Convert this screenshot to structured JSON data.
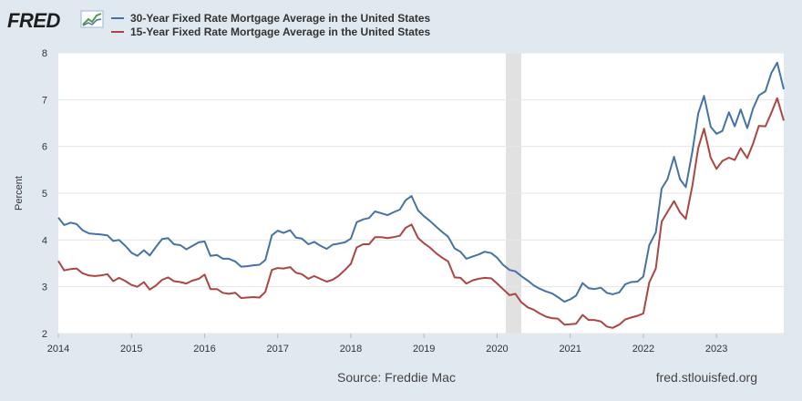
{
  "header": {
    "logo_text": "FRED",
    "logo_icon": "fred-chart-icon"
  },
  "footer": {
    "source": "Source: Freddie Mac",
    "site": "fred.stlouisfed.org"
  },
  "chart_data": {
    "type": "line",
    "title": "",
    "xlabel": "",
    "ylabel": "Percent",
    "ylim": [
      2,
      8
    ],
    "yticks": [
      2,
      3,
      4,
      5,
      6,
      7,
      8
    ],
    "xlim": [
      2014.0,
      2023.92
    ],
    "xticks": [
      "2014",
      "2015",
      "2016",
      "2017",
      "2018",
      "2019",
      "2020",
      "2021",
      "2022",
      "2023"
    ],
    "grid": "horizontal",
    "legend_position": "top-left",
    "recession": {
      "start": 2020.12,
      "end": 2020.33,
      "color": "#e1e1e1"
    },
    "series": [
      {
        "name": "30-Year Fixed Rate Mortgage Average in the United States",
        "color": "#4572a7",
        "x": [
          2014.0,
          2014.08,
          2014.17,
          2014.25,
          2014.33,
          2014.42,
          2014.5,
          2014.58,
          2014.67,
          2014.75,
          2014.83,
          2014.92,
          2015.0,
          2015.08,
          2015.17,
          2015.25,
          2015.33,
          2015.42,
          2015.5,
          2015.58,
          2015.67,
          2015.75,
          2015.83,
          2015.92,
          2016.0,
          2016.08,
          2016.17,
          2016.25,
          2016.33,
          2016.42,
          2016.5,
          2016.58,
          2016.67,
          2016.75,
          2016.83,
          2016.92,
          2017.0,
          2017.08,
          2017.17,
          2017.25,
          2017.33,
          2017.42,
          2017.5,
          2017.58,
          2017.67,
          2017.75,
          2017.83,
          2017.92,
          2018.0,
          2018.08,
          2018.17,
          2018.25,
          2018.33,
          2018.42,
          2018.5,
          2018.58,
          2018.67,
          2018.75,
          2018.83,
          2018.92,
          2019.0,
          2019.08,
          2019.17,
          2019.25,
          2019.33,
          2019.42,
          2019.5,
          2019.58,
          2019.67,
          2019.75,
          2019.83,
          2019.92,
          2020.0,
          2020.08,
          2020.17,
          2020.25,
          2020.33,
          2020.42,
          2020.5,
          2020.58,
          2020.67,
          2020.75,
          2020.83,
          2020.92,
          2021.0,
          2021.08,
          2021.17,
          2021.25,
          2021.33,
          2021.42,
          2021.5,
          2021.58,
          2021.67,
          2021.75,
          2021.83,
          2021.92,
          2022.0,
          2022.08,
          2022.17,
          2022.25,
          2022.33,
          2022.42,
          2022.5,
          2022.58,
          2022.67,
          2022.75,
          2022.83,
          2022.92,
          2023.0,
          2023.08,
          2023.17,
          2023.25,
          2023.33,
          2023.42,
          2023.5,
          2023.58,
          2023.67,
          2023.75,
          2023.83,
          2023.92
        ],
        "values": [
          4.48,
          4.32,
          4.37,
          4.34,
          4.21,
          4.14,
          4.13,
          4.12,
          4.1,
          3.98,
          4.0,
          3.87,
          3.73,
          3.66,
          3.78,
          3.67,
          3.84,
          4.02,
          4.04,
          3.91,
          3.89,
          3.8,
          3.87,
          3.95,
          3.97,
          3.66,
          3.68,
          3.6,
          3.6,
          3.54,
          3.43,
          3.44,
          3.46,
          3.47,
          3.57,
          4.1,
          4.2,
          4.15,
          4.21,
          4.05,
          4.03,
          3.91,
          3.96,
          3.88,
          3.81,
          3.9,
          3.92,
          3.95,
          4.03,
          4.38,
          4.44,
          4.47,
          4.61,
          4.57,
          4.53,
          4.59,
          4.65,
          4.85,
          4.94,
          4.63,
          4.51,
          4.41,
          4.28,
          4.17,
          4.07,
          3.82,
          3.75,
          3.6,
          3.65,
          3.69,
          3.75,
          3.72,
          3.62,
          3.47,
          3.36,
          3.33,
          3.23,
          3.13,
          3.03,
          2.96,
          2.9,
          2.86,
          2.78,
          2.68,
          2.73,
          2.81,
          3.08,
          2.97,
          2.95,
          2.98,
          2.87,
          2.84,
          2.88,
          3.05,
          3.1,
          3.11,
          3.22,
          3.89,
          4.16,
          5.1,
          5.3,
          5.78,
          5.3,
          5.13,
          5.89,
          6.7,
          7.08,
          6.42,
          6.27,
          6.33,
          6.73,
          6.43,
          6.79,
          6.39,
          6.81,
          7.09,
          7.18,
          7.57,
          7.79,
          7.22
        ]
      },
      {
        "name": "15-Year Fixed Rate Mortgage Average in the United States",
        "color": "#aa4643",
        "x": [
          2014.0,
          2014.08,
          2014.17,
          2014.25,
          2014.33,
          2014.42,
          2014.5,
          2014.58,
          2014.67,
          2014.75,
          2014.83,
          2014.92,
          2015.0,
          2015.08,
          2015.17,
          2015.25,
          2015.33,
          2015.42,
          2015.5,
          2015.58,
          2015.67,
          2015.75,
          2015.83,
          2015.92,
          2016.0,
          2016.08,
          2016.17,
          2016.25,
          2016.33,
          2016.42,
          2016.5,
          2016.58,
          2016.67,
          2016.75,
          2016.83,
          2016.92,
          2017.0,
          2017.08,
          2017.17,
          2017.25,
          2017.33,
          2017.42,
          2017.5,
          2017.58,
          2017.67,
          2017.75,
          2017.83,
          2017.92,
          2018.0,
          2018.08,
          2018.17,
          2018.25,
          2018.33,
          2018.42,
          2018.5,
          2018.58,
          2018.67,
          2018.75,
          2018.83,
          2018.92,
          2019.0,
          2019.08,
          2019.17,
          2019.25,
          2019.33,
          2019.42,
          2019.5,
          2019.58,
          2019.67,
          2019.75,
          2019.83,
          2019.92,
          2020.0,
          2020.08,
          2020.17,
          2020.25,
          2020.33,
          2020.42,
          2020.5,
          2020.58,
          2020.67,
          2020.75,
          2020.83,
          2020.92,
          2021.0,
          2021.08,
          2021.17,
          2021.25,
          2021.33,
          2021.42,
          2021.5,
          2021.58,
          2021.67,
          2021.75,
          2021.83,
          2021.92,
          2022.0,
          2022.08,
          2022.17,
          2022.25,
          2022.33,
          2022.42,
          2022.5,
          2022.58,
          2022.67,
          2022.75,
          2022.83,
          2022.92,
          2023.0,
          2023.08,
          2023.17,
          2023.25,
          2023.33,
          2023.42,
          2023.5,
          2023.58,
          2023.67,
          2023.75,
          2023.83,
          2023.92
        ],
        "values": [
          3.55,
          3.35,
          3.38,
          3.39,
          3.29,
          3.24,
          3.23,
          3.24,
          3.27,
          3.12,
          3.19,
          3.12,
          3.04,
          3.0,
          3.1,
          2.94,
          3.02,
          3.15,
          3.2,
          3.12,
          3.1,
          3.07,
          3.13,
          3.17,
          3.26,
          2.95,
          2.95,
          2.87,
          2.85,
          2.87,
          2.76,
          2.77,
          2.78,
          2.77,
          2.89,
          3.36,
          3.4,
          3.39,
          3.42,
          3.3,
          3.27,
          3.17,
          3.23,
          3.17,
          3.11,
          3.15,
          3.23,
          3.36,
          3.49,
          3.84,
          3.91,
          3.91,
          4.06,
          4.06,
          4.04,
          4.06,
          4.09,
          4.26,
          4.33,
          4.04,
          3.93,
          3.84,
          3.71,
          3.62,
          3.54,
          3.2,
          3.19,
          3.07,
          3.14,
          3.17,
          3.19,
          3.18,
          3.07,
          2.95,
          2.82,
          2.85,
          2.67,
          2.56,
          2.51,
          2.43,
          2.36,
          2.33,
          2.32,
          2.19,
          2.2,
          2.21,
          2.4,
          2.29,
          2.29,
          2.26,
          2.15,
          2.12,
          2.19,
          2.3,
          2.34,
          2.38,
          2.43,
          3.09,
          3.39,
          4.39,
          4.6,
          4.83,
          4.59,
          4.45,
          5.16,
          5.96,
          6.38,
          5.76,
          5.52,
          5.69,
          5.76,
          5.71,
          5.96,
          5.75,
          6.06,
          6.44,
          6.43,
          6.72,
          7.03,
          6.55
        ]
      }
    ]
  }
}
